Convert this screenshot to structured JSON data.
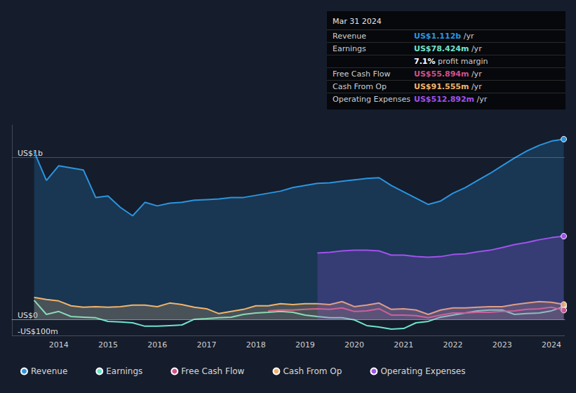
{
  "chart_data": {
    "type": "line",
    "x": [
      2013.5,
      2013.75,
      2014,
      2014.25,
      2014.5,
      2014.75,
      2015,
      2015.25,
      2015.5,
      2015.75,
      2016,
      2016.25,
      2016.5,
      2016.75,
      2017,
      2017.25,
      2017.5,
      2017.75,
      2018,
      2018.25,
      2018.5,
      2018.75,
      2019,
      2019.25,
      2019.5,
      2019.75,
      2020,
      2020.25,
      2020.5,
      2020.75,
      2021,
      2021.25,
      2021.5,
      2021.75,
      2022,
      2022.25,
      2022.5,
      2022.75,
      2023,
      2023.25,
      2023.5,
      2023.75,
      2024,
      2024.25
    ],
    "xlim": [
      2013.05,
      2024.27
    ],
    "xticks": [
      2014,
      2015,
      2016,
      2017,
      2018,
      2019,
      2020,
      2021,
      2022,
      2023,
      2024
    ],
    "ylim": [
      -100,
      1200
    ],
    "yticks": [
      {
        "value": -100,
        "label": "-US$100m"
      },
      {
        "value": 0,
        "label": "US$0"
      },
      {
        "value": 1000,
        "label": "US$1b"
      }
    ],
    "grid": true,
    "legend": "bottom-left",
    "series": [
      {
        "name": "Revenue",
        "type": "area",
        "color": "#2a95e0",
        "values": [
          1035,
          857,
          948,
          935,
          922,
          752,
          761,
          691,
          639,
          722,
          700,
          717,
          722,
          735,
          739,
          743,
          752,
          752,
          765,
          778,
          791,
          813,
          826,
          839,
          843,
          852,
          861,
          870,
          874,
          826,
          787,
          748,
          709,
          730,
          778,
          813,
          857,
          900,
          948,
          996,
          1039,
          1074,
          1100,
          1112
        ]
      },
      {
        "name": "Earnings",
        "type": "line",
        "color": "#6fe3cc",
        "values": [
          117,
          30,
          48,
          17,
          13,
          9,
          -13,
          -17,
          -22,
          -43,
          -43,
          -39,
          -35,
          0,
          4,
          9,
          13,
          30,
          39,
          43,
          48,
          43,
          26,
          17,
          9,
          9,
          -4,
          -39,
          -48,
          -61,
          -57,
          -22,
          -13,
          13,
          26,
          39,
          52,
          57,
          57,
          30,
          35,
          39,
          52,
          78.424
        ]
      },
      {
        "name": "Free Cash Flow",
        "type": "line",
        "color": "#d1508b",
        "values": [
          null,
          null,
          null,
          null,
          null,
          null,
          null,
          null,
          null,
          null,
          null,
          null,
          null,
          null,
          null,
          null,
          null,
          null,
          null,
          52,
          57,
          57,
          61,
          65,
          61,
          70,
          48,
          52,
          65,
          26,
          26,
          22,
          9,
          26,
          39,
          39,
          43,
          43,
          48,
          52,
          61,
          65,
          74,
          55.894
        ]
      },
      {
        "name": "Cash From Op",
        "type": "area",
        "color": "#f0b46c",
        "values": [
          135,
          122,
          113,
          83,
          74,
          78,
          74,
          78,
          87,
          87,
          78,
          100,
          91,
          74,
          65,
          35,
          48,
          61,
          83,
          83,
          96,
          91,
          96,
          96,
          91,
          109,
          78,
          87,
          100,
          61,
          65,
          57,
          30,
          57,
          70,
          70,
          74,
          78,
          78,
          91,
          100,
          109,
          105,
          91.555
        ]
      },
      {
        "name": "Operating Expenses",
        "type": "area",
        "color": "#a052ec",
        "values": [
          null,
          null,
          null,
          null,
          null,
          null,
          null,
          null,
          null,
          null,
          null,
          null,
          null,
          null,
          null,
          null,
          null,
          null,
          null,
          null,
          null,
          null,
          null,
          409,
          413,
          422,
          426,
          426,
          422,
          396,
          396,
          387,
          383,
          387,
          400,
          404,
          417,
          426,
          443,
          461,
          474,
          491,
          504,
          512.892
        ]
      }
    ],
    "annotations": {
      "date": "Mar 31 2024",
      "rows": [
        {
          "label": "Revenue",
          "value": "US$1.112b",
          "unit": "/yr"
        },
        {
          "label": "Earnings",
          "value": "US$78.424m",
          "unit": "/yr"
        },
        {
          "value": "7.1%",
          "unit": "profit margin"
        },
        {
          "label": "Free Cash Flow",
          "value": "US$55.894m",
          "unit": "/yr"
        },
        {
          "label": "Cash From Op",
          "value": "US$91.555m",
          "unit": "/yr"
        },
        {
          "label": "Operating Expenses",
          "value": "US$512.892m",
          "unit": "/yr"
        }
      ]
    }
  }
}
